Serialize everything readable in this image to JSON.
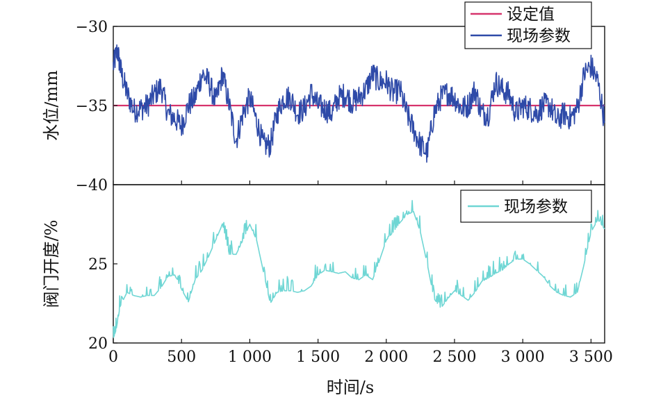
{
  "chart_data": [
    {
      "type": "line",
      "ylabel": "水位/mm",
      "ylim": [
        -40,
        -30
      ],
      "y_ticks": [
        "-30",
        "-35",
        "-40"
      ],
      "xlim": [
        0,
        3600
      ],
      "legend": {
        "placement": "top-right",
        "entries": [
          "设定值",
          "现场参数"
        ]
      },
      "series": [
        {
          "name": "设定值",
          "color": "#d6336c",
          "x": [
            0,
            3600
          ],
          "y": [
            -35,
            -35
          ]
        },
        {
          "name": "现场参数",
          "color": "#2e4aa8",
          "x": [
            0,
            30,
            60,
            100,
            150,
            200,
            250,
            300,
            350,
            400,
            450,
            500,
            550,
            600,
            650,
            700,
            750,
            800,
            850,
            900,
            950,
            1000,
            1050,
            1100,
            1150,
            1200,
            1250,
            1300,
            1350,
            1400,
            1450,
            1500,
            1550,
            1600,
            1650,
            1700,
            1750,
            1800,
            1850,
            1900,
            1950,
            2000,
            2050,
            2100,
            2150,
            2200,
            2250,
            2300,
            2350,
            2400,
            2450,
            2500,
            2550,
            2600,
            2650,
            2700,
            2750,
            2800,
            2850,
            2900,
            2950,
            3000,
            3050,
            3100,
            3150,
            3200,
            3250,
            3300,
            3350,
            3400,
            3450,
            3500,
            3550,
            3600
          ],
          "y": [
            -32.5,
            -31.5,
            -33,
            -34.2,
            -35.3,
            -35.2,
            -35,
            -34.3,
            -33.8,
            -35.5,
            -35.8,
            -36.3,
            -35,
            -34.5,
            -33,
            -33.5,
            -34.8,
            -33,
            -35,
            -37.2,
            -35.5,
            -34.5,
            -36,
            -37.5,
            -37.5,
            -35.5,
            -34.5,
            -34.5,
            -35.5,
            -35.2,
            -34.2,
            -35,
            -35.2,
            -35.5,
            -34.5,
            -34.3,
            -34.8,
            -34.5,
            -34,
            -33,
            -33.5,
            -33.5,
            -34.2,
            -34,
            -35.5,
            -36.5,
            -37.5,
            -38,
            -35.5,
            -34.5,
            -34.2,
            -34.5,
            -35.2,
            -35,
            -34,
            -35.5,
            -35.5,
            -33.5,
            -34,
            -34.3,
            -35.5,
            -35,
            -35.2,
            -35.5,
            -35,
            -35,
            -36,
            -35.5,
            -35.8,
            -35.2,
            -33,
            -32.5,
            -33.5,
            -36
          ]
        }
      ]
    },
    {
      "type": "line",
      "xlabel": "时间/s",
      "ylabel": "阀门开度/%",
      "ylim": [
        20,
        30
      ],
      "y_ticks": [
        "20",
        "25"
      ],
      "xlim": [
        0,
        3600
      ],
      "x_ticks": [
        "0",
        "500",
        "1 000",
        "1 500",
        "2 000",
        "2 500",
        "3 000",
        "3 500"
      ],
      "x_tick_values": [
        0,
        500,
        1000,
        1500,
        2000,
        2500,
        3000,
        3500
      ],
      "legend": {
        "placement": "top-right",
        "entries": [
          "现场参数"
        ]
      },
      "series": [
        {
          "name": "现场参数",
          "color": "#6fd6d4",
          "x": [
            0,
            20,
            50,
            100,
            150,
            200,
            250,
            300,
            350,
            400,
            450,
            500,
            550,
            600,
            650,
            700,
            750,
            800,
            850,
            900,
            950,
            1000,
            1050,
            1100,
            1150,
            1200,
            1250,
            1300,
            1350,
            1400,
            1450,
            1500,
            1550,
            1600,
            1650,
            1700,
            1750,
            1800,
            1850,
            1900,
            1950,
            2000,
            2050,
            2100,
            2150,
            2200,
            2250,
            2300,
            2350,
            2400,
            2450,
            2500,
            2550,
            2600,
            2650,
            2700,
            2750,
            2800,
            2850,
            2900,
            2950,
            3000,
            3050,
            3100,
            3150,
            3200,
            3250,
            3300,
            3350,
            3400,
            3450,
            3500,
            3550,
            3600
          ],
          "y": [
            20.3,
            20.8,
            22.3,
            23.2,
            23.0,
            22.9,
            23.0,
            23.0,
            23.5,
            24.2,
            24.3,
            23.4,
            22.6,
            24.0,
            24.6,
            25.5,
            26.5,
            27.5,
            25.6,
            25.6,
            26.5,
            27.5,
            26.5,
            24.5,
            22.5,
            23.2,
            23.3,
            23.3,
            23.2,
            23.3,
            23.6,
            24.3,
            24.6,
            24.5,
            24.4,
            24.5,
            24.1,
            24.0,
            24.3,
            24.0,
            25.2,
            26.5,
            27.0,
            27.6,
            28.1,
            28.3,
            27.0,
            25.0,
            22.8,
            22.2,
            22.8,
            23.3,
            23.0,
            22.7,
            23.2,
            23.9,
            24.1,
            24.4,
            24.6,
            25.0,
            25.3,
            25.3,
            25.0,
            24.6,
            24.2,
            23.6,
            23.2,
            23.0,
            22.9,
            23.2,
            25.0,
            27.0,
            27.8,
            27.2
          ]
        }
      ]
    }
  ]
}
